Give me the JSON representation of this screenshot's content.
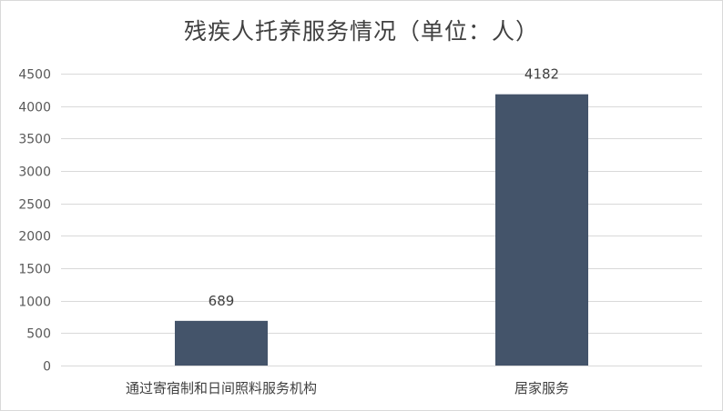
{
  "chart_data": {
    "type": "bar",
    "title": "残疾人托养服务情况（单位：人）",
    "xlabel": "",
    "ylabel": "",
    "categories": [
      "通过寄宿制和日间照料服务机构",
      "居家服务"
    ],
    "values": [
      689,
      4182
    ],
    "ylim": [
      0,
      4500
    ],
    "yticks": [
      0,
      500,
      1000,
      1500,
      2000,
      2500,
      3000,
      3500,
      4000,
      4500
    ],
    "grid": true,
    "legend": "none",
    "bar_color": "#44546a",
    "grid_color": "#d9d9d9"
  }
}
